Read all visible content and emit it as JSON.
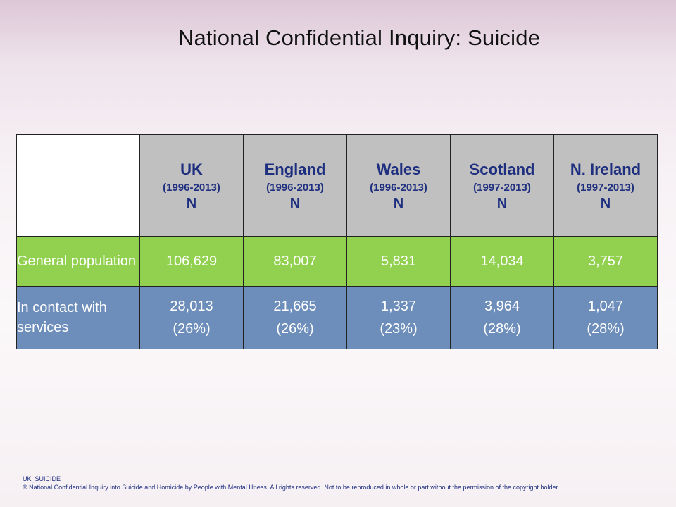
{
  "title": "National Confidential Inquiry: Suicide",
  "table": {
    "columns": [
      {
        "name": "UK",
        "years": "(1996-2013)",
        "unit": "N"
      },
      {
        "name": "England",
        "years": "(1996-2013)",
        "unit": "N"
      },
      {
        "name": "Wales",
        "years": "(1996-2013)",
        "unit": "N"
      },
      {
        "name": "Scotland",
        "years": "(1997-2013)",
        "unit": "N"
      },
      {
        "name": "N. Ireland",
        "years": "(1997-2013)",
        "unit": "N"
      }
    ],
    "rows": [
      {
        "label": "General population",
        "cells": [
          {
            "value": "106,629",
            "pct": ""
          },
          {
            "value": "83,007",
            "pct": ""
          },
          {
            "value": "5,831",
            "pct": ""
          },
          {
            "value": "14,034",
            "pct": ""
          },
          {
            "value": "3,757",
            "pct": ""
          }
        ]
      },
      {
        "label": "In contact with services",
        "cells": [
          {
            "value": "28,013",
            "pct": "(26%)"
          },
          {
            "value": "21,665",
            "pct": "(26%)"
          },
          {
            "value": "1,337",
            "pct": "(23%)"
          },
          {
            "value": "3,964",
            "pct": "(28%)"
          },
          {
            "value": "1,047",
            "pct": "(28%)"
          }
        ]
      }
    ]
  },
  "colors": {
    "header_bg": "#c0c0c0",
    "header_text": "#1f2f80",
    "general_row_bg": "#92d050",
    "contact_row_bg": "#6d8dba",
    "cell_text": "#ffffff"
  },
  "footer": {
    "code": "UK_SUICIDE",
    "copyright": "© National Confidential Inquiry into Suicide and Homicide by People with Mental Illness. All rights reserved. Not to be reproduced in whole or part without the permission of the copyright holder."
  }
}
